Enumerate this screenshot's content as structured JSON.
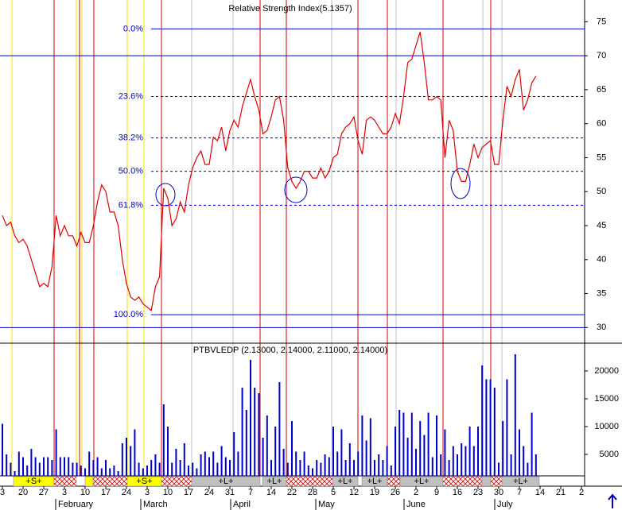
{
  "chart_data": [
    {
      "type": "line",
      "title": "Relative Strength Index(5.1357)",
      "categories": [
        "3",
        null,
        null,
        null,
        null,
        "20",
        null,
        null,
        null,
        null,
        "27",
        null,
        null,
        null,
        null,
        "3",
        null,
        null,
        null,
        null,
        "10",
        null,
        null,
        null,
        null,
        "17",
        null,
        null,
        null,
        null,
        "24",
        null,
        null,
        null,
        null,
        "3",
        null,
        null,
        null,
        null,
        "10",
        null,
        null,
        null,
        null,
        "17",
        null,
        null,
        null,
        null,
        "24",
        null,
        null,
        null,
        null,
        "31",
        null,
        null,
        null,
        null,
        "7",
        null,
        null,
        null,
        null,
        "14",
        null,
        null,
        null,
        null,
        "22",
        null,
        null,
        null,
        null,
        "28",
        null,
        null,
        null,
        null,
        "5",
        null,
        null,
        null,
        null,
        "12",
        null,
        null,
        null,
        null,
        "19",
        null,
        null,
        null,
        null,
        "26",
        null,
        null,
        null,
        null,
        "2",
        null,
        null,
        null,
        null,
        "9",
        null,
        null,
        null,
        null,
        "16",
        null,
        null,
        null,
        null,
        "23",
        null,
        null,
        null,
        null,
        "30",
        null,
        null,
        null,
        null,
        "7",
        null,
        null,
        null,
        null,
        "14",
        null,
        null,
        null,
        null,
        "21",
        null,
        null,
        null,
        null,
        "2"
      ],
      "series": [
        {
          "name": "RSI",
          "color": "#e00000",
          "values": [
            46.5,
            45,
            45.5,
            43.5,
            42.5,
            43,
            42,
            40,
            38,
            36,
            36.5,
            36,
            39,
            46.5,
            43.5,
            45,
            43.5,
            43.5,
            42,
            44,
            42.5,
            42.5,
            45,
            48.5,
            51,
            50,
            47,
            47,
            45,
            40,
            36.5,
            34.5,
            34,
            34.5,
            33.5,
            33,
            32.5,
            36,
            37.5,
            50.5,
            49,
            45,
            46,
            48.5,
            47,
            51,
            53.5,
            55,
            56,
            54,
            54,
            58,
            57.5,
            59.5,
            56,
            59,
            60.5,
            59.5,
            62.5,
            64.5,
            66.5,
            64,
            62,
            58.5,
            59,
            61,
            63.5,
            64,
            60.5,
            53.5,
            51.5,
            50.5,
            51.5,
            53,
            53,
            52,
            52,
            53.5,
            52,
            53,
            55,
            55.5,
            58.5,
            59.5,
            60,
            61,
            57.5,
            55.5,
            60.5,
            61,
            60.5,
            59.5,
            58.5,
            58.5,
            59.5,
            61.5,
            60,
            64,
            69,
            69.5,
            71.5,
            73.5,
            69,
            63.5,
            63.5,
            64,
            63.5,
            55,
            60.5,
            59,
            53,
            51.5,
            51.5,
            54,
            57,
            55,
            56.5,
            57,
            57.5,
            54,
            54,
            60.5,
            65.5,
            64,
            66.5,
            68,
            62,
            63.5,
            66,
            67,
            null,
            null,
            null,
            null,
            null,
            null,
            null,
            null,
            null,
            null,
            null
          ]
        }
      ],
      "levels": [
        {
          "label": "0.0%",
          "value": 73.95
        },
        {
          "label": "23.6%",
          "value": 64
        },
        {
          "label": "38.2%",
          "value": 57.9
        },
        {
          "label": "50.0%",
          "value": 53
        },
        {
          "label": "61.8%",
          "value": 48
        },
        {
          "label": "100.0%",
          "value": 31.9
        }
      ],
      "hlines": [
        70,
        30
      ],
      "ylim": [
        27.7,
        78.2
      ],
      "yticks": [
        30,
        35,
        40,
        45,
        50,
        55,
        60,
        65,
        70,
        75
      ]
    },
    {
      "type": "bar",
      "title": "PTBVLEDP (2.13000, 2.14000, 2.11000, 2.14000)",
      "color": "#0000cc",
      "values": [
        10500,
        5000,
        3500,
        2000,
        5500,
        4500,
        3000,
        6000,
        4500,
        3500,
        4500,
        4500,
        4000,
        9500,
        4500,
        4500,
        4500,
        3500,
        3500,
        3000,
        2500,
        5500,
        4000,
        4500,
        2500,
        4000,
        2500,
        3000,
        2000,
        7000,
        8000,
        6500,
        9500,
        3500,
        2500,
        3000,
        4000,
        5000,
        3500,
        14000,
        10000,
        3500,
        6000,
        4000,
        7000,
        3000,
        3500,
        2500,
        5000,
        5500,
        4500,
        5500,
        3500,
        6500,
        4500,
        4000,
        9000,
        5500,
        17000,
        13000,
        22000,
        17000,
        16000,
        8000,
        12000,
        4000,
        10000,
        18000,
        6000,
        3500,
        11000,
        5500,
        4000,
        5500,
        3000,
        2500,
        4000,
        3500,
        5000,
        4500,
        10000,
        5500,
        9500,
        4000,
        7000,
        4000,
        5500,
        12000,
        7500,
        11500,
        4000,
        5000,
        4000,
        6500,
        3000,
        10000,
        13000,
        12500,
        8000,
        12500,
        6000,
        11000,
        8500,
        12500,
        4500,
        12000,
        5000,
        9500,
        4000,
        6500,
        5000,
        7000,
        6500,
        10000,
        6500,
        10000,
        21000,
        18500,
        18500,
        17000,
        3500,
        11000,
        18500,
        5000,
        23000,
        9500,
        6500,
        3500,
        12500,
        5000,
        null,
        null,
        null,
        null,
        null,
        null,
        null,
        null,
        null,
        null,
        null
      ],
      "ylim": [
        0,
        25000
      ],
      "yticks": [
        5000,
        10000,
        15000,
        20000
      ]
    }
  ],
  "months": [
    "February",
    "March",
    "April",
    "May",
    "June",
    "July"
  ],
  "signals": [
    "+S+",
    "+S+",
    "+L+",
    "+L+",
    "+L+",
    "+L+",
    "+L+",
    "+L+"
  ]
}
